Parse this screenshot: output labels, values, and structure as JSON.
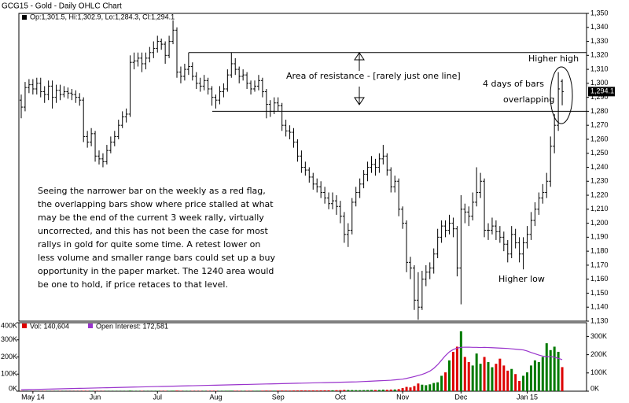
{
  "chart_data": [
    {
      "type": "ohlc",
      "title": "GCG15 - Gold - Daily OHLC Chart",
      "ohlc_legend": "Op:1,301.5, Hi:1,302.9, Lo:1,284.3, Cl:1,294.1",
      "last_label": "1,294.1",
      "color": "#000000",
      "categories": [
        null,
        null,
        null,
        "May 14",
        null,
        null,
        null,
        null,
        null,
        null,
        null,
        null,
        null,
        null,
        null,
        null,
        null,
        null,
        null,
        "Jun",
        null,
        null,
        null,
        null,
        null,
        null,
        null,
        null,
        null,
        null,
        null,
        null,
        null,
        null,
        null,
        "Jul",
        null,
        null,
        null,
        null,
        null,
        null,
        null,
        null,
        null,
        null,
        null,
        null,
        null,
        null,
        "Aug",
        null,
        null,
        null,
        null,
        null,
        null,
        null,
        null,
        null,
        null,
        null,
        null,
        null,
        null,
        null,
        "Sep",
        null,
        null,
        null,
        null,
        null,
        null,
        null,
        null,
        null,
        null,
        null,
        null,
        null,
        null,
        null,
        "Oct",
        null,
        null,
        null,
        null,
        null,
        null,
        null,
        null,
        null,
        null,
        null,
        null,
        null,
        null,
        null,
        "Nov",
        null,
        null,
        null,
        null,
        null,
        null,
        null,
        null,
        null,
        null,
        null,
        null,
        null,
        null,
        "Dec",
        null,
        null,
        null,
        null,
        null,
        null,
        null,
        null,
        null,
        null,
        null,
        null,
        null,
        null,
        null,
        null,
        "Jan 15",
        null,
        null,
        null,
        null,
        null,
        null,
        null,
        null,
        null
      ],
      "open": [
        1288,
        1283,
        1297,
        1299,
        1296,
        1300,
        1294,
        1292,
        1298,
        1290,
        1295,
        1292,
        1294,
        1293,
        1292,
        1290,
        1288,
        1262,
        1258,
        1264,
        1248,
        1246,
        1244,
        1252,
        1258,
        1262,
        1270,
        1276,
        1278,
        1315,
        1316,
        1318,
        1314,
        1318,
        1322,
        1325,
        1330,
        1328,
        1320,
        1330,
        1338,
        1308,
        1305,
        1310,
        1312,
        1305,
        1300,
        1298,
        1302,
        1296,
        1290,
        1288,
        1294,
        1296,
        1306,
        1314,
        1310,
        1305,
        1306,
        1300,
        1296,
        1298,
        1302,
        1294,
        1285,
        1280,
        1286,
        1284,
        1270,
        1266,
        1265,
        1258,
        1248,
        1240,
        1238,
        1233,
        1228,
        1226,
        1222,
        1218,
        1214,
        1216,
        1212,
        1205,
        1192,
        1195,
        1215,
        1222,
        1228,
        1235,
        1240,
        1242,
        1240,
        1246,
        1248,
        1238,
        1226,
        1230,
        1210,
        1200,
        1172,
        1168,
        1145,
        1140,
        1160,
        1165,
        1168,
        1178,
        1190,
        1198,
        1195,
        1200,
        1196,
        1168,
        1210,
        1208,
        1205,
        1215,
        1222,
        1230,
        1195,
        1195,
        1198,
        1194,
        1190,
        1185,
        1178,
        1192,
        1186,
        1178,
        1186,
        1192,
        1202,
        1210,
        1218,
        1222,
        1230,
        1255,
        1270,
        1301.5
      ],
      "high": [
        1292,
        1301,
        1303,
        1303,
        1304,
        1304,
        1298,
        1302,
        1302,
        1299,
        1299,
        1298,
        1297,
        1296,
        1295,
        1293,
        1290,
        1266,
        1268,
        1266,
        1252,
        1250,
        1256,
        1262,
        1266,
        1274,
        1280,
        1282,
        1320,
        1322,
        1322,
        1322,
        1322,
        1326,
        1330,
        1334,
        1332,
        1330,
        1334,
        1345,
        1340,
        1312,
        1314,
        1322,
        1315,
        1308,
        1304,
        1306,
        1304,
        1298,
        1292,
        1298,
        1300,
        1310,
        1322,
        1318,
        1312,
        1310,
        1308,
        1302,
        1302,
        1306,
        1304,
        1296,
        1288,
        1290,
        1290,
        1286,
        1274,
        1270,
        1268,
        1260,
        1252,
        1244,
        1240,
        1236,
        1232,
        1230,
        1226,
        1222,
        1222,
        1220,
        1216,
        1208,
        1200,
        1218,
        1226,
        1232,
        1238,
        1244,
        1248,
        1246,
        1250,
        1256,
        1250,
        1240,
        1234,
        1232,
        1212,
        1202,
        1176,
        1170,
        1165,
        1166,
        1170,
        1172,
        1182,
        1196,
        1202,
        1202,
        1206,
        1204,
        1198,
        1220,
        1214,
        1212,
        1222,
        1240,
        1236,
        1232,
        1200,
        1204,
        1202,
        1198,
        1194,
        1188,
        1198,
        1196,
        1190,
        1190,
        1198,
        1208,
        1215,
        1222,
        1228,
        1236,
        1262,
        1278,
        1308,
        1302.9
      ],
      "low": [
        1275,
        1280,
        1293,
        1292,
        1292,
        1290,
        1286,
        1288,
        1282,
        1286,
        1288,
        1290,
        1289,
        1288,
        1286,
        1284,
        1258,
        1254,
        1255,
        1244,
        1242,
        1240,
        1242,
        1250,
        1255,
        1260,
        1268,
        1272,
        1276,
        1310,
        1312,
        1308,
        1310,
        1315,
        1318,
        1322,
        1324,
        1314,
        1318,
        1328,
        1304,
        1300,
        1302,
        1306,
        1302,
        1296,
        1294,
        1295,
        1292,
        1284,
        1282,
        1285,
        1290,
        1294,
        1304,
        1306,
        1300,
        1302,
        1296,
        1292,
        1294,
        1295,
        1290,
        1275,
        1276,
        1278,
        1280,
        1266,
        1262,
        1260,
        1254,
        1244,
        1236,
        1234,
        1229,
        1224,
        1222,
        1218,
        1214,
        1210,
        1210,
        1206,
        1200,
        1186,
        1183,
        1192,
        1212,
        1218,
        1225,
        1230,
        1236,
        1234,
        1236,
        1242,
        1234,
        1222,
        1222,
        1205,
        1196,
        1165,
        1160,
        1138,
        1131,
        1138,
        1155,
        1160,
        1164,
        1175,
        1186,
        1190,
        1192,
        1190,
        1162,
        1142,
        1200,
        1198,
        1202,
        1212,
        1218,
        1190,
        1188,
        1192,
        1188,
        1186,
        1180,
        1172,
        1175,
        1182,
        1172,
        1167,
        1182,
        1188,
        1198,
        1206,
        1214,
        1218,
        1226,
        1250,
        1266,
        1284.3
      ],
      "close": [
        1283,
        1297,
        1299,
        1296,
        1300,
        1294,
        1292,
        1298,
        1290,
        1295,
        1292,
        1294,
        1293,
        1292,
        1290,
        1288,
        1262,
        1258,
        1264,
        1248,
        1246,
        1244,
        1252,
        1258,
        1262,
        1270,
        1276,
        1278,
        1315,
        1316,
        1318,
        1314,
        1318,
        1322,
        1325,
        1330,
        1328,
        1320,
        1330,
        1338,
        1308,
        1305,
        1310,
        1312,
        1305,
        1300,
        1298,
        1302,
        1296,
        1290,
        1288,
        1294,
        1296,
        1306,
        1314,
        1310,
        1305,
        1306,
        1300,
        1296,
        1298,
        1302,
        1294,
        1285,
        1280,
        1286,
        1284,
        1270,
        1266,
        1265,
        1258,
        1248,
        1240,
        1238,
        1233,
        1228,
        1226,
        1222,
        1218,
        1214,
        1216,
        1212,
        1205,
        1192,
        1195,
        1215,
        1222,
        1228,
        1235,
        1240,
        1242,
        1240,
        1246,
        1248,
        1238,
        1226,
        1230,
        1210,
        1200,
        1172,
        1168,
        1145,
        1140,
        1160,
        1165,
        1168,
        1178,
        1190,
        1198,
        1195,
        1200,
        1196,
        1168,
        1210,
        1208,
        1205,
        1215,
        1222,
        1230,
        1195,
        1195,
        1198,
        1194,
        1190,
        1185,
        1178,
        1192,
        1186,
        1178,
        1186,
        1192,
        1202,
        1210,
        1218,
        1222,
        1230,
        1255,
        1270,
        1296,
        1294.1
      ],
      "ylim": [
        1130,
        1350
      ],
      "yticks": [
        {
          "value": 1130,
          "label": "1,130"
        },
        {
          "value": 1140,
          "label": "1,140"
        },
        {
          "value": 1150,
          "label": "1,150"
        },
        {
          "value": 1160,
          "label": "1,160"
        },
        {
          "value": 1170,
          "label": "1,170"
        },
        {
          "value": 1180,
          "label": "1,180"
        },
        {
          "value": 1190,
          "label": "1,190"
        },
        {
          "value": 1200,
          "label": "1,200"
        },
        {
          "value": 1210,
          "label": "1,210"
        },
        {
          "value": 1220,
          "label": "1,220"
        },
        {
          "value": 1230,
          "label": "1,230"
        },
        {
          "value": 1240,
          "label": "1,240"
        },
        {
          "value": 1250,
          "label": "1,250"
        },
        {
          "value": 1260,
          "label": "1,260"
        },
        {
          "value": 1270,
          "label": "1,270"
        },
        {
          "value": 1280,
          "label": "1,280"
        },
        {
          "value": 1290,
          "label": "1,290"
        },
        {
          "value": 1300,
          "label": "1,300"
        },
        {
          "value": 1310,
          "label": "1,310"
        },
        {
          "value": 1320,
          "label": "1,320"
        },
        {
          "value": 1330,
          "label": "1,330"
        },
        {
          "value": 1340,
          "label": "1,340"
        },
        {
          "value": 1350,
          "label": "1,350"
        }
      ],
      "resistance_levels": [
        1322,
        1280
      ],
      "annotations": {
        "resistance": "Area of resistance - [rarely just one line]",
        "higher_high": "Higher high",
        "overlap": [
          "4 days of bars",
          "overlapping"
        ],
        "higher_low": "Higher low",
        "commentary": [
          "Seeing the narrower bar on the weekly as a red flag,",
          "the overlapping bars show where price stalled at what",
          "may be the end of the current 3 week rally, virtually",
          "uncorrected, and this has not been the case for most",
          "rallys in gold for quite some time.  A retest lower on",
          "less volume and smaller range bars could set up a buy",
          "opportunity in the paper market.  The 1240 area would",
          "be one to hold, if price retaces to that level."
        ]
      }
    },
    {
      "type": "volume",
      "series": [
        {
          "name": "Vol: 140,604",
          "color": "#dd0000",
          "up_color": "#007a00",
          "values": [
            1200,
            800,
            1500,
            1000,
            900,
            1100,
            1300,
            900,
            1000,
            1200,
            1400,
            1100,
            900,
            1000,
            1300,
            1500,
            2500,
            2000,
            1800,
            1600,
            1700,
            1500,
            1400,
            1600,
            1800,
            1500,
            1400,
            1700,
            3500,
            2200,
            1900,
            1800,
            1700,
            1600,
            2000,
            2200,
            1800,
            2100,
            2400,
            3000,
            3500,
            2500,
            2200,
            2300,
            2100,
            2000,
            2200,
            2400,
            2100,
            2600,
            2300,
            2200,
            2500,
            2800,
            3000,
            2600,
            2400,
            2200,
            2500,
            2700,
            2600,
            2800,
            3000,
            3500,
            3200,
            3000,
            3400,
            3800,
            3600,
            3500,
            4000,
            4200,
            4500,
            4300,
            4100,
            4400,
            4200,
            4600,
            4800,
            5000,
            5200,
            5600,
            6000,
            7500,
            6800,
            6400,
            6000,
            5800,
            6200,
            6600,
            7000,
            6800,
            7200,
            9000,
            8000,
            9500,
            10000,
            12000,
            18000,
            25000,
            22000,
            30000,
            45000,
            38000,
            35000,
            40000,
            48000,
            52000,
            90000,
            110000,
            180000,
            230000,
            260000,
            350000,
            200000,
            170000,
            150000,
            220000,
            160000,
            200000,
            170000,
            140000,
            160000,
            190000,
            150000,
            120000,
            130000,
            100000,
            60000,
            90000,
            110000,
            150000,
            180000,
            170000,
            200000,
            280000,
            240000,
            260000,
            230000,
            140604
          ]
        },
        {
          "name": "Open Interest: 172,581",
          "color": "#9933cc",
          "axis": "y2",
          "values": [
            8000,
            8500,
            9000,
            9500,
            10000,
            10500,
            11000,
            11500,
            12000,
            12500,
            13000,
            13500,
            14000,
            14500,
            15000,
            15500,
            16000,
            16500,
            17000,
            17500,
            18000,
            18500,
            19000,
            19500,
            20000,
            20500,
            21000,
            21500,
            22000,
            22500,
            23000,
            23500,
            24000,
            24500,
            25000,
            25500,
            26000,
            26500,
            27000,
            27500,
            28000,
            28500,
            29000,
            29500,
            30000,
            30500,
            31000,
            31500,
            32000,
            32500,
            33000,
            33500,
            34000,
            34500,
            35000,
            35500,
            36000,
            36500,
            37000,
            37500,
            38000,
            38500,
            39000,
            39500,
            40000,
            40500,
            41000,
            41500,
            42000,
            42500,
            43000,
            43500,
            44000,
            44500,
            45000,
            45500,
            46000,
            46500,
            47000,
            47500,
            48000,
            48500,
            49000,
            49500,
            50000,
            50500,
            51000,
            52000,
            53000,
            54000,
            55000,
            56000,
            57000,
            58000,
            59000,
            60000,
            62000,
            64000,
            66000,
            70000,
            75000,
            80000,
            86000,
            92000,
            100000,
            110000,
            125000,
            145000,
            170000,
            195000,
            215000,
            228000,
            236000,
            240000,
            241000,
            241000,
            240000,
            240000,
            239000,
            240000,
            239000,
            238000,
            237000,
            236000,
            235000,
            234000,
            232000,
            230000,
            228000,
            226000,
            220000,
            212000,
            205000,
            198000,
            192000,
            188000,
            190000,
            186000,
            180000,
            172581
          ]
        }
      ],
      "ylim": [
        0,
        400000
      ],
      "yticks": [
        {
          "value": 0,
          "label": "0K"
        },
        {
          "value": 100000,
          "label": "100K"
        },
        {
          "value": 200000,
          "label": "200K"
        },
        {
          "value": 300000,
          "label": "300K"
        },
        {
          "value": 400000,
          "label": "400K"
        }
      ],
      "y2lim": [
        0,
        375000
      ],
      "y2ticks": [
        {
          "value": 0,
          "label": "0K"
        },
        {
          "value": 100000,
          "label": "100K"
        },
        {
          "value": 200000,
          "label": "200K"
        },
        {
          "value": 300000,
          "label": "300K"
        }
      ]
    }
  ]
}
